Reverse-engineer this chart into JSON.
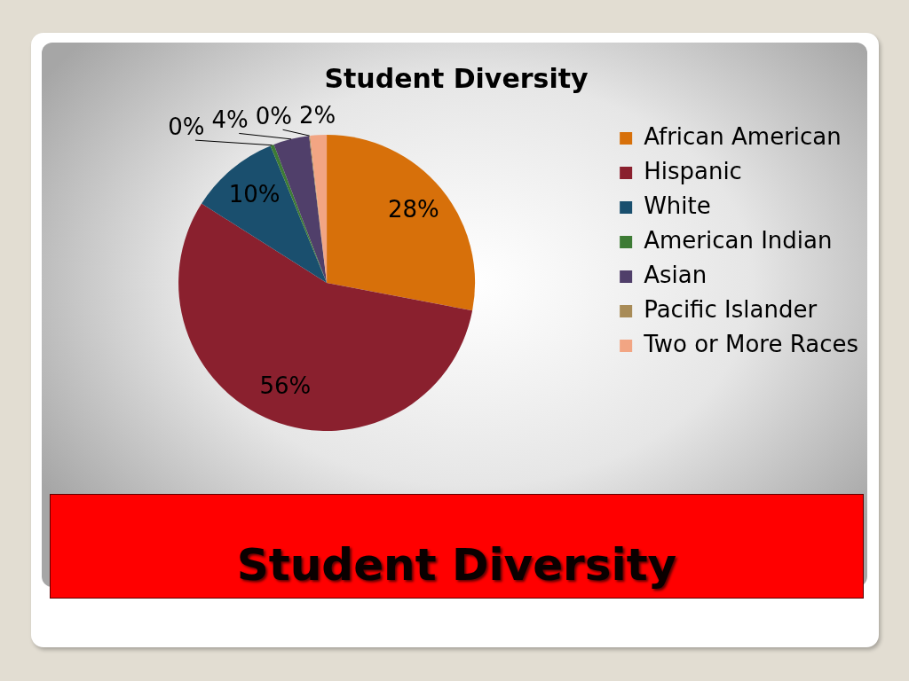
{
  "chart_data": {
    "type": "pie",
    "title": "Student Diversity",
    "categories": [
      "African American",
      "Hispanic",
      "White",
      "American Indian",
      "Asian",
      "Pacific Islander",
      "Two or More Races"
    ],
    "values": [
      28,
      56,
      9.8,
      0.4,
      3.9,
      0.1,
      1.8
    ],
    "colors": [
      "#d7700a",
      "#8a202e",
      "#1a4f6e",
      "#3d7b35",
      "#503f6a",
      "#a88b57",
      "#f2a583"
    ],
    "value_labels": [
      "28%",
      "56%",
      "10%",
      "0%",
      "4%",
      "0%",
      "2%"
    ],
    "legend": "right",
    "annotations": [
      "Student Diversity"
    ]
  }
}
